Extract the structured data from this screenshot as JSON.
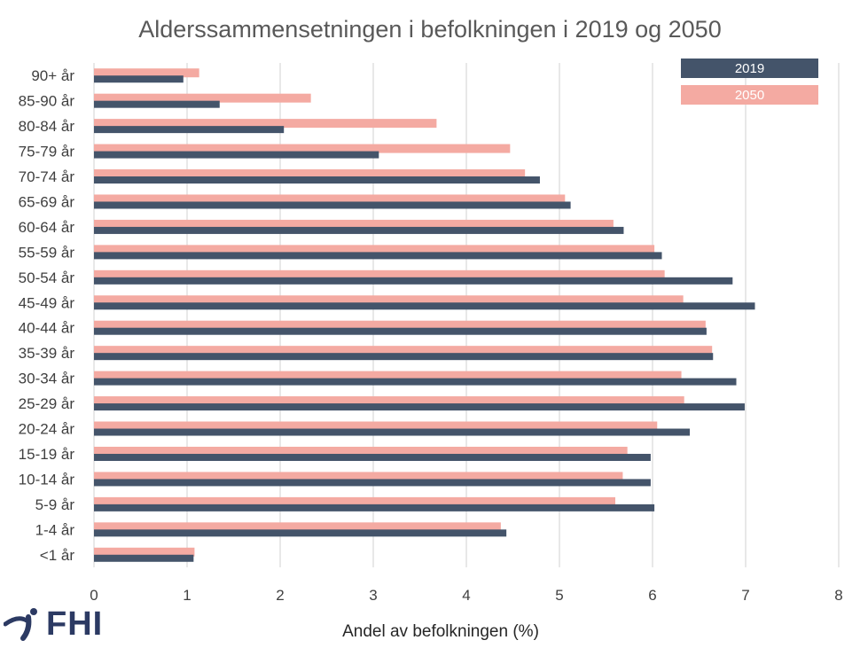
{
  "chart_data": {
    "type": "bar",
    "orientation": "horizontal",
    "title": "Alderssammensetningen i befolkningen i 2019 og 2050",
    "xlabel": "Andel av befolkningen (%)",
    "ylabel": "",
    "xlim": [
      0,
      8
    ],
    "xticks": [
      0,
      1,
      2,
      3,
      4,
      5,
      6,
      7,
      8
    ],
    "grid": "vertical",
    "legend_position": "top-right",
    "categories": [
      "90+ år",
      "85-90 år",
      "80-84 år",
      "75-79 år",
      "70-74 år",
      "65-69 år",
      "60-64 år",
      "55-59 år",
      "50-54 år",
      "45-49 år",
      "40-44 år",
      "35-39 år",
      "30-34 år",
      "25-29 år",
      "20-24 år",
      "15-19 år",
      "10-14 år",
      "5-9 år",
      "1-4 år",
      "<1 år"
    ],
    "series": [
      {
        "name": "2019",
        "color": "#44546a",
        "values": [
          0.96,
          1.35,
          2.04,
          3.06,
          4.79,
          5.12,
          5.69,
          6.1,
          6.86,
          7.1,
          6.58,
          6.65,
          6.9,
          6.99,
          6.4,
          5.98,
          5.98,
          6.02,
          4.43,
          1.07
        ]
      },
      {
        "name": "2050",
        "color": "#f4aaa2",
        "values": [
          1.13,
          2.33,
          3.68,
          4.47,
          4.63,
          5.06,
          5.58,
          6.02,
          6.13,
          6.33,
          6.57,
          6.64,
          6.31,
          6.34,
          6.05,
          5.73,
          5.68,
          5.6,
          4.37,
          1.08
        ]
      }
    ]
  },
  "logo": {
    "text": "FHI"
  }
}
